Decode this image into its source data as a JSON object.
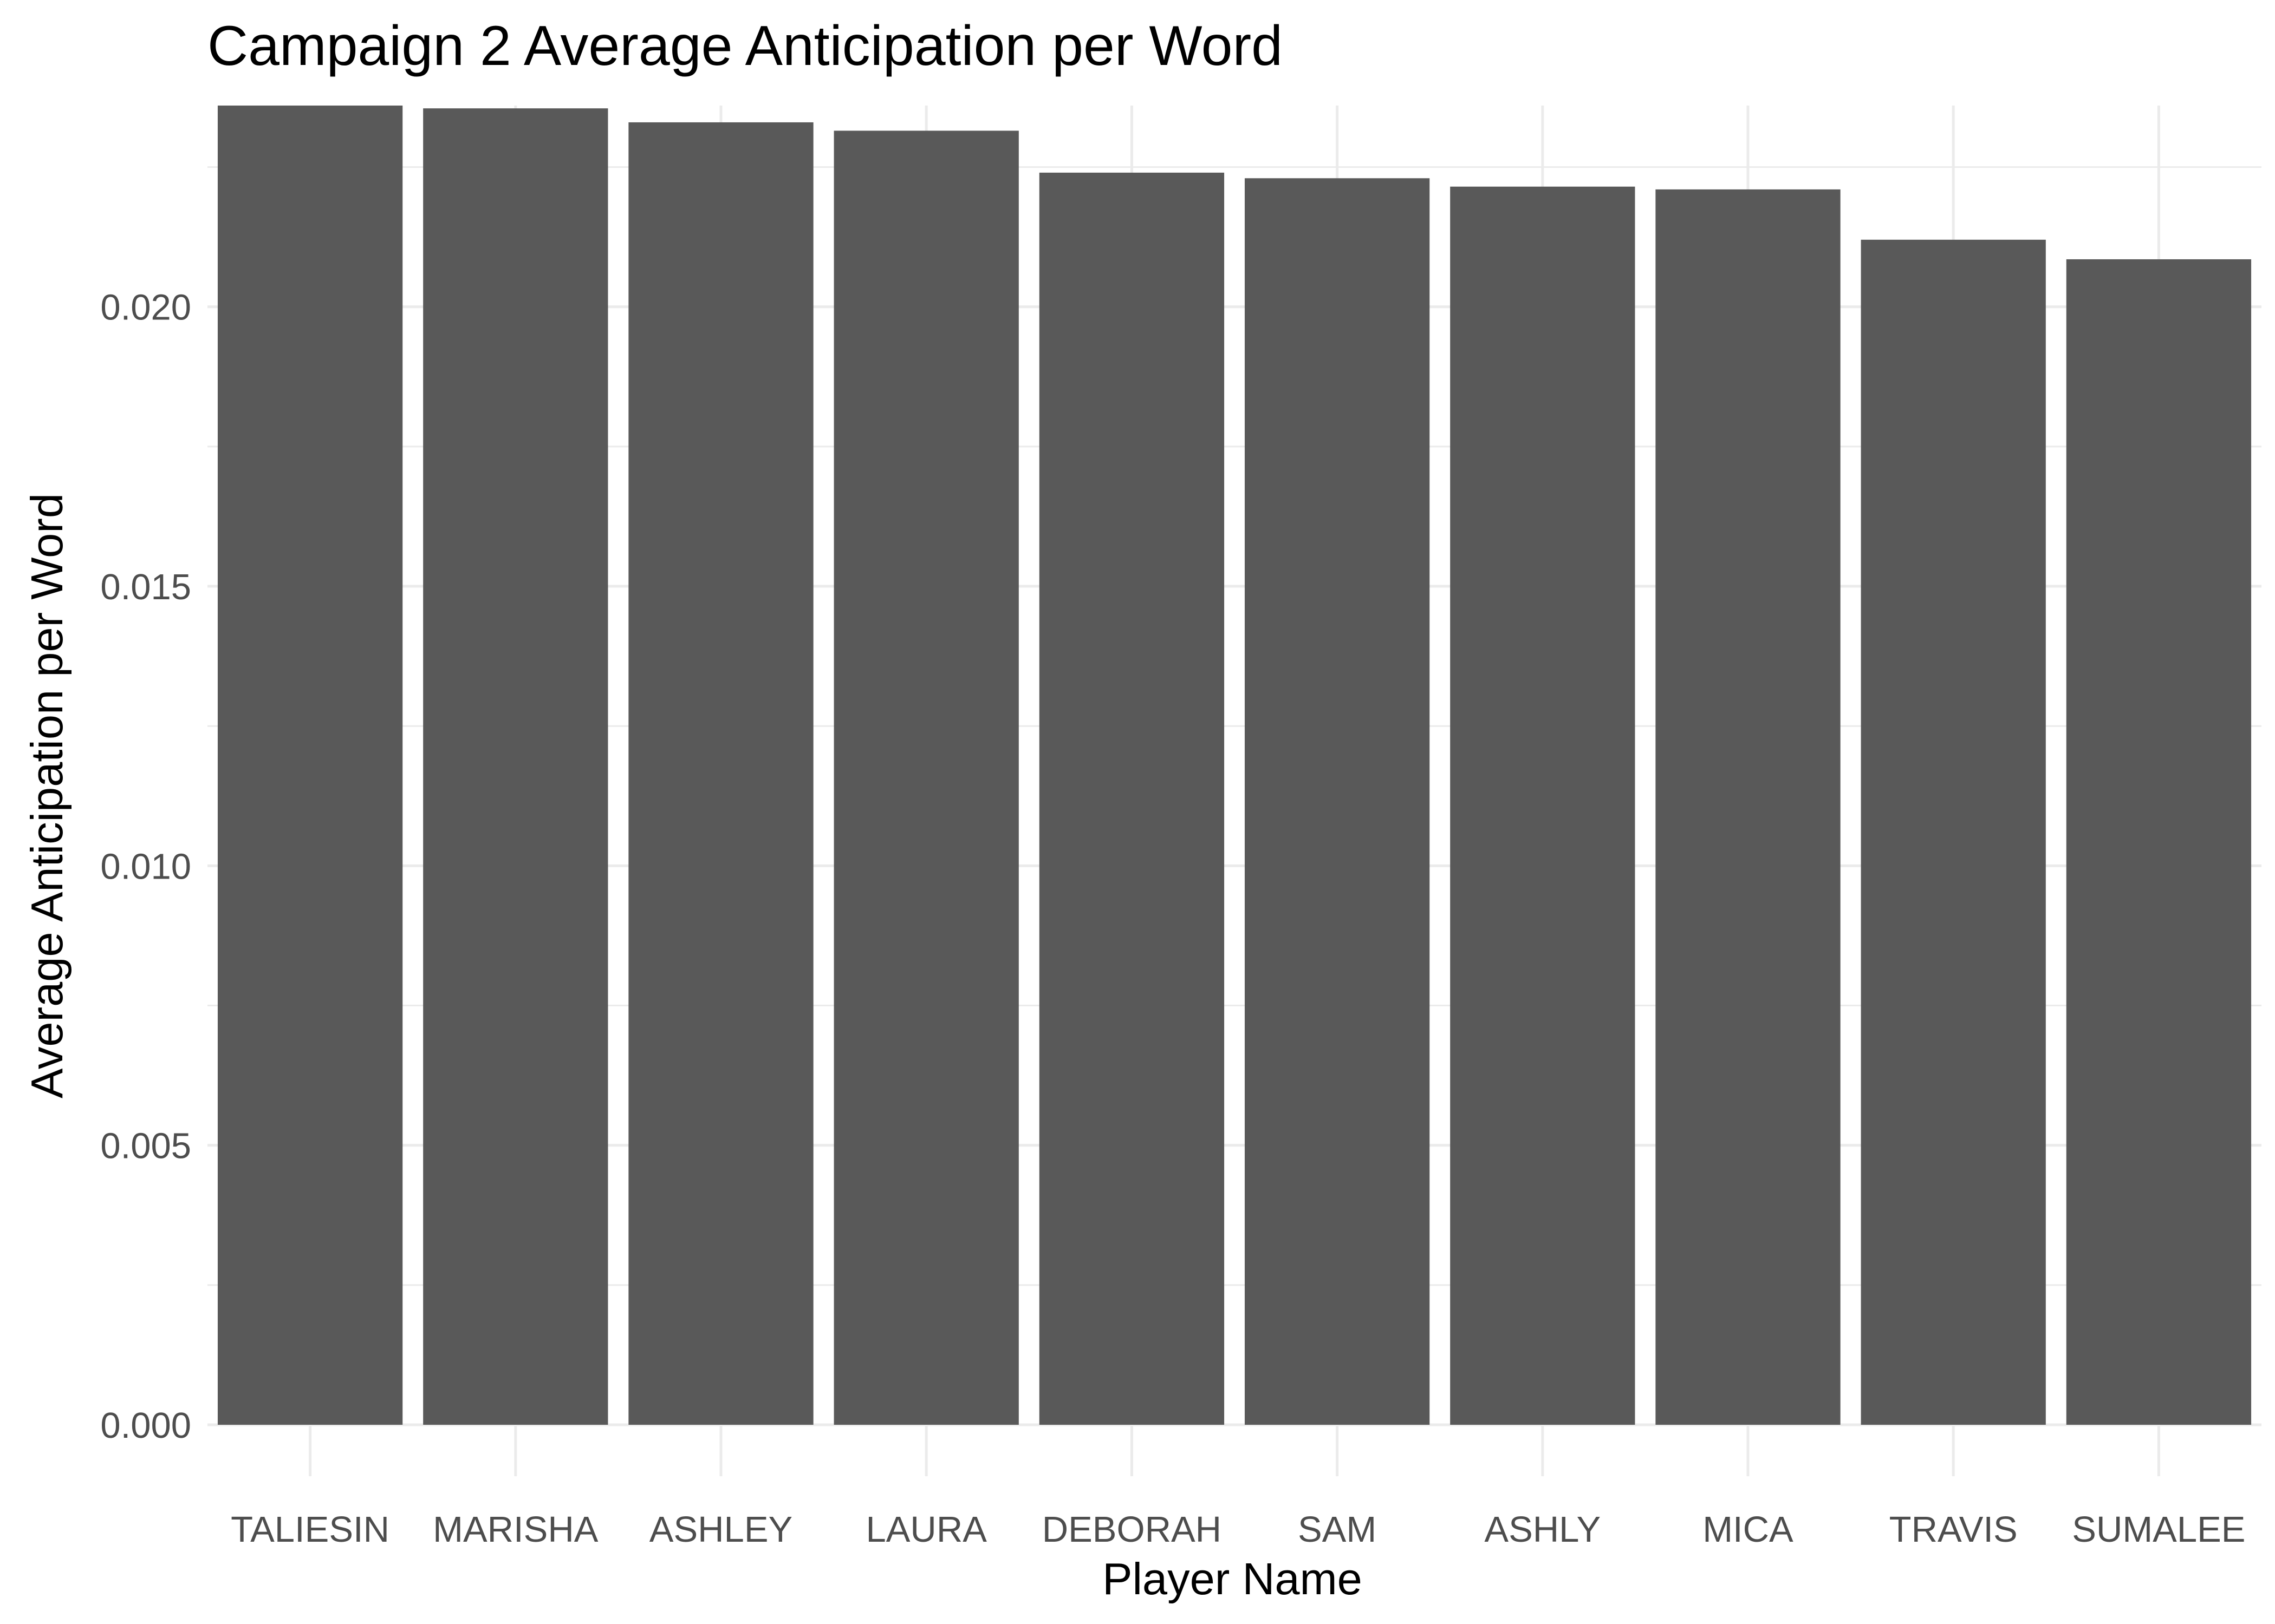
{
  "chart_data": {
    "type": "bar",
    "title": "Campaign 2 Average Anticipation per Word",
    "xlabel": "Player Name",
    "ylabel": "Average Anticipation per Word",
    "categories": [
      "TALIESIN",
      "MARISHA",
      "ASHLEY",
      "LAURA",
      "DEBORAH",
      "SAM",
      "ASHLY",
      "MICA",
      "TRAVIS",
      "SUMALEE"
    ],
    "values": [
      0.0236,
      0.02355,
      0.0233,
      0.02315,
      0.0224,
      0.0223,
      0.02215,
      0.0221,
      0.0212,
      0.02085
    ],
    "ylim": [
      0,
      0.0236
    ],
    "yticks": [
      0,
      0.005,
      0.01,
      0.015,
      0.02
    ],
    "ytick_labels": [
      "0.000",
      "0.005",
      "0.010",
      "0.015",
      "0.020"
    ],
    "grid": true,
    "bar_color": "#595959",
    "grid_color": "#ebebeb"
  }
}
